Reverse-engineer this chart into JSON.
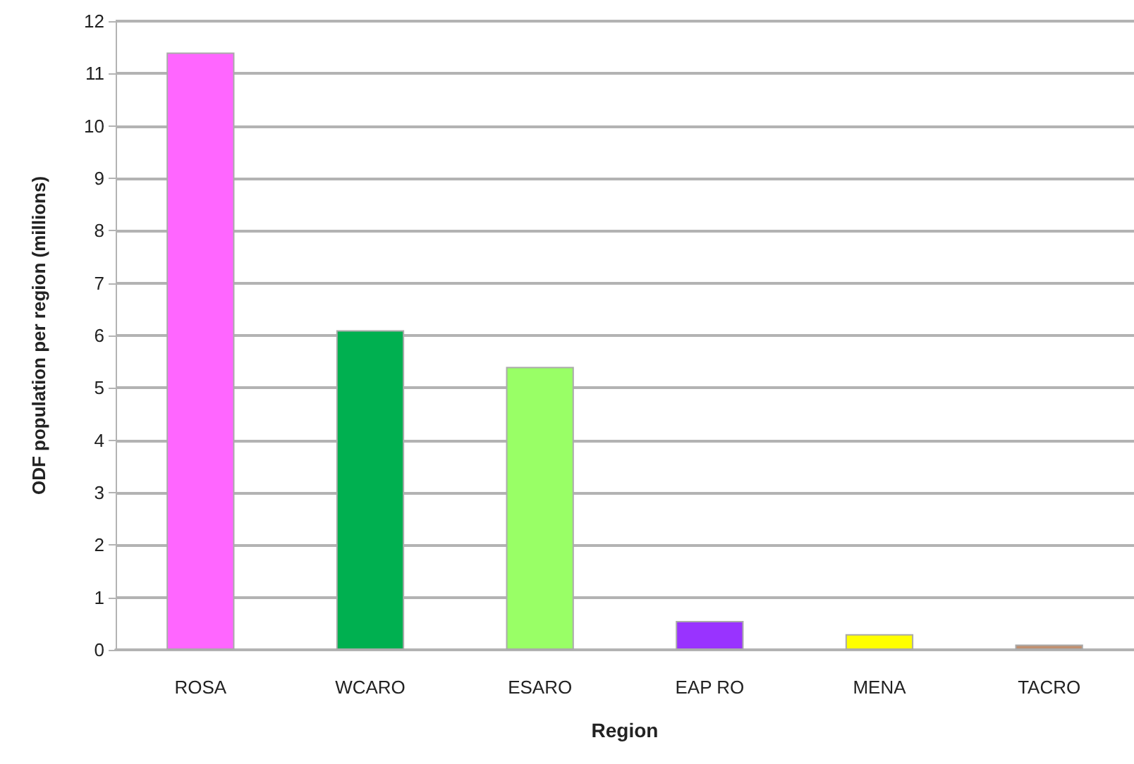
{
  "chart_data": {
    "type": "bar",
    "xlabel": "Region",
    "ylabel": "ODF population per region (millions)",
    "categories": [
      "ROSA",
      "WCARO",
      "ESARO",
      "EAP RO",
      "MENA",
      "TACRO"
    ],
    "values": [
      11.4,
      6.1,
      5.4,
      0.55,
      0.3,
      0.1
    ],
    "colors": [
      "#ff66ff",
      "#00b050",
      "#99ff66",
      "#9933ff",
      "#ffff00",
      "#c09070"
    ],
    "ylim": [
      0,
      12
    ],
    "yticks": [
      0,
      1,
      2,
      3,
      4,
      5,
      6,
      7,
      8,
      9,
      10,
      11,
      12
    ],
    "grid": "y"
  }
}
